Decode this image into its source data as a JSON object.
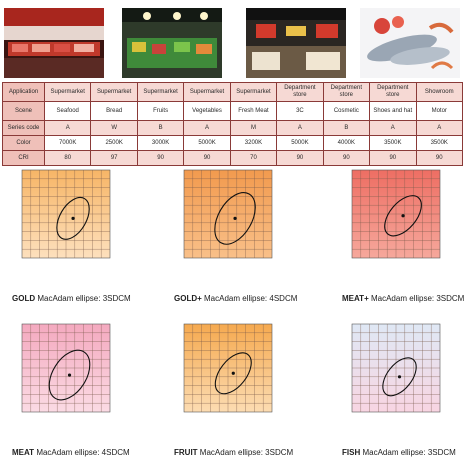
{
  "table": {
    "rows": [
      {
        "label": "Application",
        "cells": [
          "Supermarket",
          "Supermarket",
          "Supermarket",
          "Supermarket",
          "Supermarket",
          "Department store",
          "Department store",
          "Department store",
          "Showroom"
        ]
      },
      {
        "label": "Scene",
        "cells": [
          "Seafood",
          "Bread",
          "Fruits",
          "Vegetables",
          "Fresh Meat",
          "3C",
          "Cosmetic",
          "Shoes and hat",
          "Motor"
        ]
      },
      {
        "label": "Series code",
        "cells": [
          "A",
          "W",
          "B",
          "A",
          "M",
          "A",
          "B",
          "A",
          "A"
        ]
      },
      {
        "label": "Color",
        "cells": [
          "7000K",
          "2500K",
          "3000K",
          "5000K",
          "3200K",
          "5000K",
          "4000K",
          "3500K",
          "3500K"
        ]
      },
      {
        "label": "CRI",
        "cells": [
          "80",
          "97",
          "90",
          "90",
          "70",
          "90",
          "90",
          "90",
          "90"
        ]
      }
    ]
  },
  "panels": [
    {
      "name": "GOLD",
      "caption": "MacAdam ellipse: 3SDCM",
      "color_top": "#f7b566",
      "color_bottom": "#fde0bd"
    },
    {
      "name": "GOLD+",
      "caption": "MacAdam ellipse: 4SDCM",
      "color_top": "#f29a4e",
      "color_bottom": "#f9c089"
    },
    {
      "name": "MEAT+",
      "caption": "MacAdam ellipse: 3SDCM",
      "color_top": "#ee6e63",
      "color_bottom": "#f6a89c"
    },
    {
      "name": "MEAT",
      "caption": "MacAdam ellipse: 4SDCM",
      "color_top": "#f4a9bf",
      "color_bottom": "#fbdbe4"
    },
    {
      "name": "FRUIT",
      "caption": "MacAdam ellipse: 3SDCM",
      "color_top": "#f5a94f",
      "color_bottom": "#fcdcb2"
    },
    {
      "name": "FISH",
      "caption": "MacAdam ellipse: 3SDCM",
      "color_top": "#dfe8f5",
      "color_bottom": "#f8d5e2"
    }
  ]
}
